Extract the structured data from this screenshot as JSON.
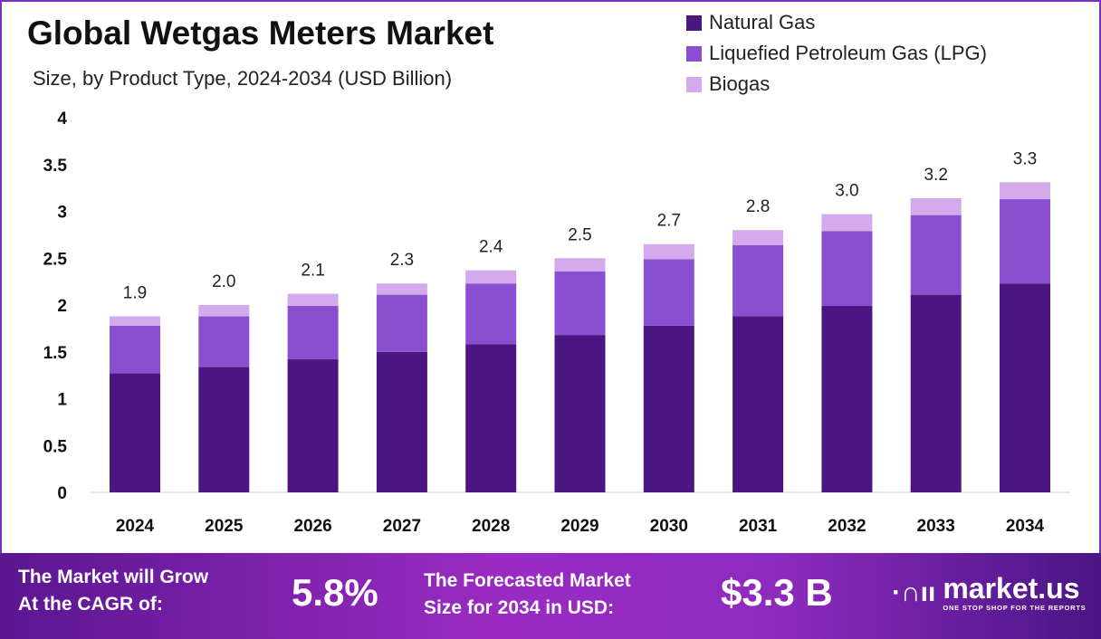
{
  "chart_data": {
    "type": "bar",
    "stacked": true,
    "title": "Global Wetgas Meters Market",
    "subtitle": "Size, by Product Type, 2024-2034 (USD Billion)",
    "xlabel": "",
    "ylabel": "",
    "ylim": [
      0,
      4
    ],
    "yticks": [
      "0",
      "0.5",
      "1",
      "1.5",
      "2",
      "2.5",
      "3",
      "3.5",
      "4"
    ],
    "grid": false,
    "legend_position": "top-right",
    "categories": [
      "2024",
      "2025",
      "2026",
      "2027",
      "2028",
      "2029",
      "2030",
      "2031",
      "2032",
      "2033",
      "2034"
    ],
    "series": [
      {
        "name": "Natural Gas",
        "color": "#4b1681",
        "values": [
          1.27,
          1.34,
          1.42,
          1.5,
          1.58,
          1.68,
          1.78,
          1.88,
          1.99,
          2.11,
          2.23
        ]
      },
      {
        "name": "Liquefied Petroleum Gas (LPG)",
        "color": "#8a4fd0",
        "values": [
          0.51,
          0.54,
          0.57,
          0.61,
          0.65,
          0.68,
          0.71,
          0.76,
          0.8,
          0.85,
          0.9
        ]
      },
      {
        "name": "Biogas",
        "color": "#d3aaec",
        "values": [
          0.1,
          0.12,
          0.13,
          0.12,
          0.14,
          0.14,
          0.16,
          0.16,
          0.18,
          0.18,
          0.18
        ]
      }
    ],
    "totals_labels": [
      "1.9",
      "2.0",
      "2.1",
      "2.3",
      "2.4",
      "2.5",
      "2.7",
      "2.8",
      "3.0",
      "3.2",
      "3.3"
    ]
  },
  "footer": {
    "cagr_text_line1": "The Market will Grow",
    "cagr_text_line2": "At the CAGR of:",
    "cagr_value": "5.8%",
    "forecast_text_line1": "The Forecasted Market",
    "forecast_text_line2": "Size for 2034 in USD:",
    "forecast_value": "$3.3 B",
    "logo_name": "market.us",
    "logo_tagline": "ONE STOP SHOP FOR THE REPORTS"
  }
}
